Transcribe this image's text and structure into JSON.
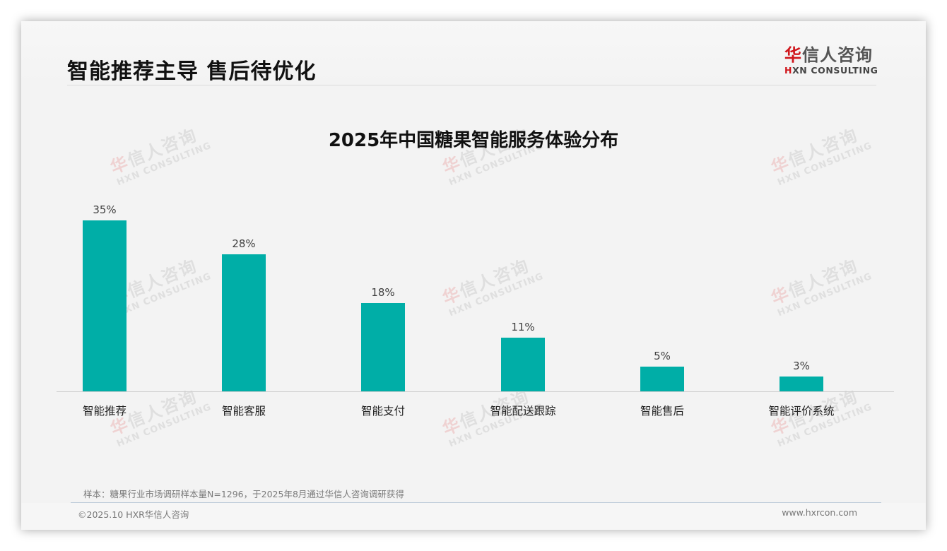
{
  "header": {
    "title": "智能推荐主导 售后待优化",
    "logo": {
      "cn_red": "华",
      "cn_rest": "信人咨询",
      "en_red": "H",
      "en_rest": "XN CONSULTING"
    }
  },
  "watermark": {
    "cn_red": "华",
    "cn_rest": "信人咨询",
    "en": "HXN CONSULTING"
  },
  "chart_data": {
    "type": "bar",
    "title": "2025年中国糖果智能服务体验分布",
    "categories": [
      "智能推荐",
      "智能客服",
      "智能支付",
      "智能配送跟踪",
      "智能售后",
      "智能评价系统"
    ],
    "values": [
      35,
      28,
      18,
      11,
      5,
      3
    ],
    "value_labels": [
      "35%",
      "28%",
      "18%",
      "11%",
      "5%",
      "3%"
    ],
    "xlabel": "",
    "ylabel": "",
    "ylim": [
      0,
      40
    ],
    "grid": false,
    "legend": "none",
    "bar_color": "#00aea7"
  },
  "footer": {
    "sample_note": "样本：糖果行业市场调研样本量N=1296，于2025年8月通过华信人咨询调研获得",
    "copyright": "©2025.10 HXR华信人咨询",
    "website": "www.hxrcon.com"
  }
}
